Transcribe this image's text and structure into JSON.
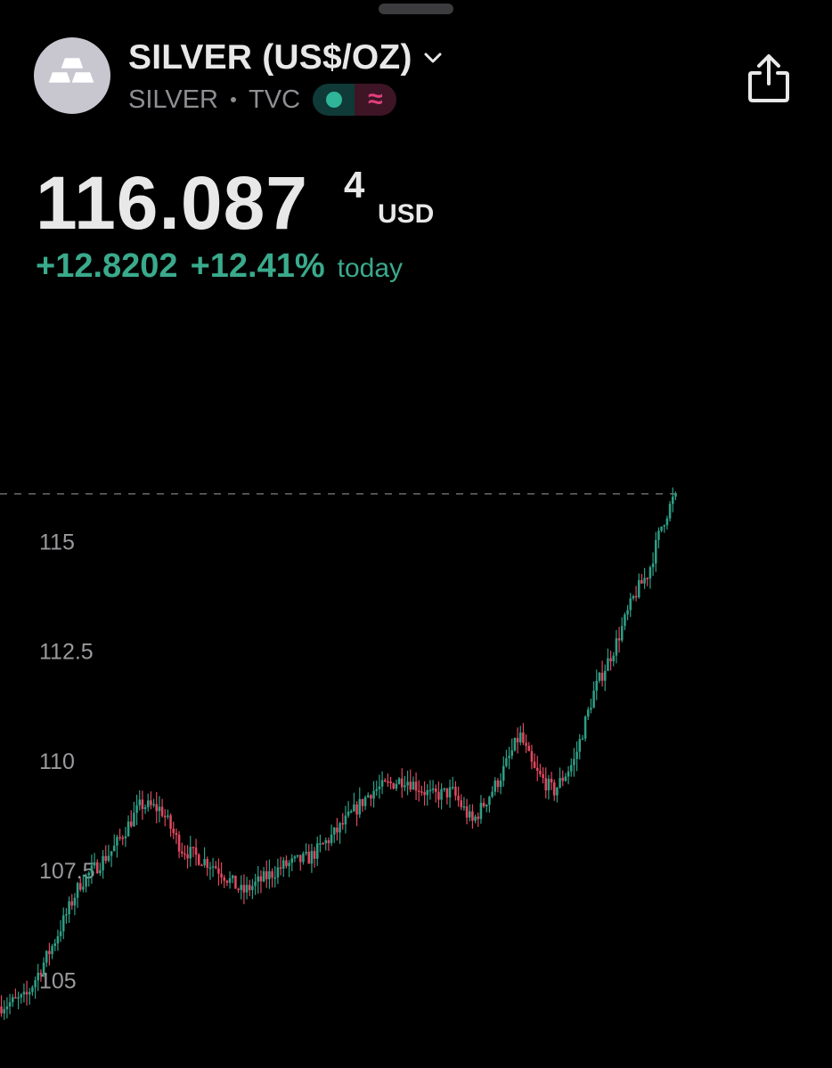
{
  "header": {
    "title": "SILVER (US$/OZ)",
    "subtitle_symbol": "SILVER",
    "subtitle_exchange": "TVC",
    "delayed_symbol": "≈"
  },
  "quote": {
    "price_main": "116.087",
    "price_sup": "4",
    "currency": "USD",
    "change": "+12.8202",
    "change_pct": "+12.41%",
    "change_label": "today"
  },
  "colors": {
    "up": "#2f9e86",
    "down": "#e0485f",
    "positive_text": "#3aaa8c",
    "background": "#000000"
  },
  "icons": {
    "logo": "silver-bars-icon",
    "dropdown": "chevron-down-icon",
    "share": "share-icon",
    "market_open": "market-open-dot-icon",
    "delayed": "delayed-data-icon"
  },
  "chart_data": {
    "type": "candlestick",
    "ylim": [
      103.0,
      117.2
    ],
    "yticks": [
      "115",
      "112.5",
      "110",
      "107.5",
      "105"
    ],
    "ytick_values": [
      115,
      112.5,
      110,
      107.5,
      105
    ],
    "last_price": 116.0874,
    "grid": false,
    "approx_candle_count": 240,
    "path_anchors": [
      [
        0,
        104.4
      ],
      [
        0.04,
        104.6
      ],
      [
        0.08,
        105.8
      ],
      [
        0.12,
        107.2
      ],
      [
        0.17,
        108.0
      ],
      [
        0.21,
        109.0
      ],
      [
        0.24,
        108.9
      ],
      [
        0.27,
        108.0
      ],
      [
        0.32,
        107.6
      ],
      [
        0.36,
        107.0
      ],
      [
        0.42,
        107.6
      ],
      [
        0.46,
        107.8
      ],
      [
        0.5,
        108.4
      ],
      [
        0.55,
        109.3
      ],
      [
        0.6,
        109.6
      ],
      [
        0.64,
        109.2
      ],
      [
        0.67,
        109.3
      ],
      [
        0.7,
        108.6
      ],
      [
        0.74,
        109.6
      ],
      [
        0.77,
        110.6
      ],
      [
        0.79,
        109.8
      ],
      [
        0.82,
        109.3
      ],
      [
        0.85,
        110.0
      ],
      [
        0.88,
        111.6
      ],
      [
        0.91,
        112.6
      ],
      [
        0.94,
        113.8
      ],
      [
        0.96,
        114.3
      ],
      [
        0.98,
        115.4
      ],
      [
        1.0,
        116.09
      ]
    ]
  }
}
